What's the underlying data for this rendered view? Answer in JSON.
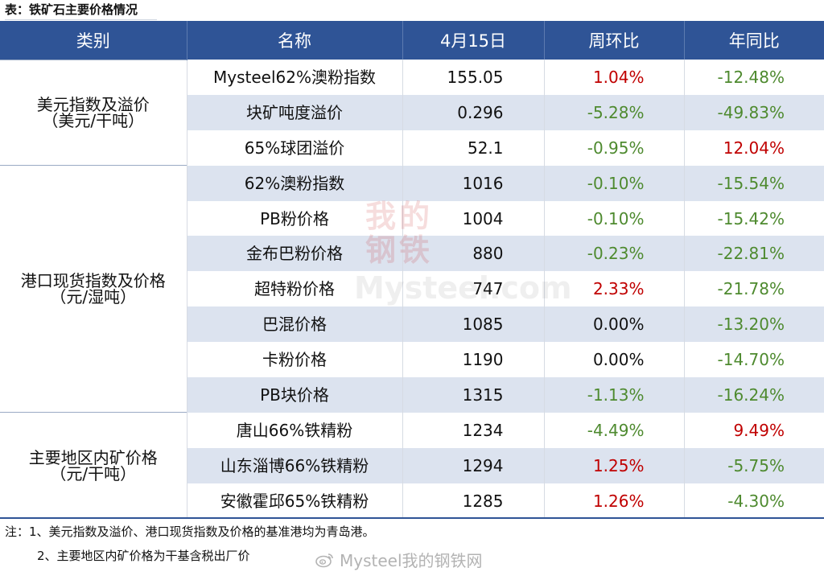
{
  "caption": "表：铁矿石主要价格情况",
  "header": {
    "category": "类别",
    "name": "名称",
    "date": "4月15日",
    "wow": "周环比",
    "yoy": "年同比"
  },
  "groups": [
    {
      "label_line1": "美元指数及溢价",
      "label_line2": "（美元/干吨）",
      "rows": [
        {
          "name": "Mysteel62%澳粉指数",
          "value": "155.05",
          "wow": "1.04%",
          "yoy": "-12.48%"
        },
        {
          "name": "块矿吨度溢价",
          "value": "0.296",
          "wow": "-5.28%",
          "yoy": "-49.83%"
        },
        {
          "name": "65%球团溢价",
          "value": "52.1",
          "wow": "-0.95%",
          "yoy": "12.04%"
        }
      ]
    },
    {
      "label_line1": "港口现货指数及价格",
      "label_line2": "（元/湿吨）",
      "rows": [
        {
          "name": "62%澳粉指数",
          "value": "1016",
          "wow": "-0.10%",
          "yoy": "-15.54%"
        },
        {
          "name": "PB粉价格",
          "value": "1004",
          "wow": "-0.10%",
          "yoy": "-15.42%"
        },
        {
          "name": "金布巴粉价格",
          "value": "880",
          "wow": "-0.23%",
          "yoy": "-22.81%"
        },
        {
          "name": "超特粉价格",
          "value": "747",
          "wow": "2.33%",
          "yoy": "-21.78%"
        },
        {
          "name": "巴混价格",
          "value": "1085",
          "wow": "0.00%",
          "yoy": "-13.20%"
        },
        {
          "name": "卡粉价格",
          "value": "1190",
          "wow": "0.00%",
          "yoy": "-14.70%"
        },
        {
          "name": "PB块价格",
          "value": "1315",
          "wow": "-1.13%",
          "yoy": "-16.24%"
        }
      ]
    },
    {
      "label_line1": "主要地区内矿价格",
      "label_line2": "（元/干吨）",
      "rows": [
        {
          "name": "唐山66%铁精粉",
          "value": "1234",
          "wow": "-4.49%",
          "yoy": "9.49%"
        },
        {
          "name": "山东淄博66%铁精粉",
          "value": "1294",
          "wow": "1.25%",
          "yoy": "-5.75%"
        },
        {
          "name": "安徽霍邱65%铁精粉",
          "value": "1285",
          "wow": "1.26%",
          "yoy": "-4.30%"
        }
      ]
    }
  ],
  "notes": {
    "line1": "注：1、美元指数及溢价、港口现货指数及价格的基准港均为青岛港。",
    "line2": "2、主要地区内矿价格为干基含税出厂价"
  },
  "watermarks": {
    "center_cn": "我的钢铁",
    "center_en": "Mysteel.com",
    "bottom": "Mysteel我的钢铁网"
  },
  "colors": {
    "header_bg": "#2f5496",
    "stripe": "#dce3ef",
    "positive": "#c00000",
    "negative": "#4e8a2f",
    "zero": "#111111"
  },
  "icons": {
    "weibo": "weibo-icon"
  }
}
